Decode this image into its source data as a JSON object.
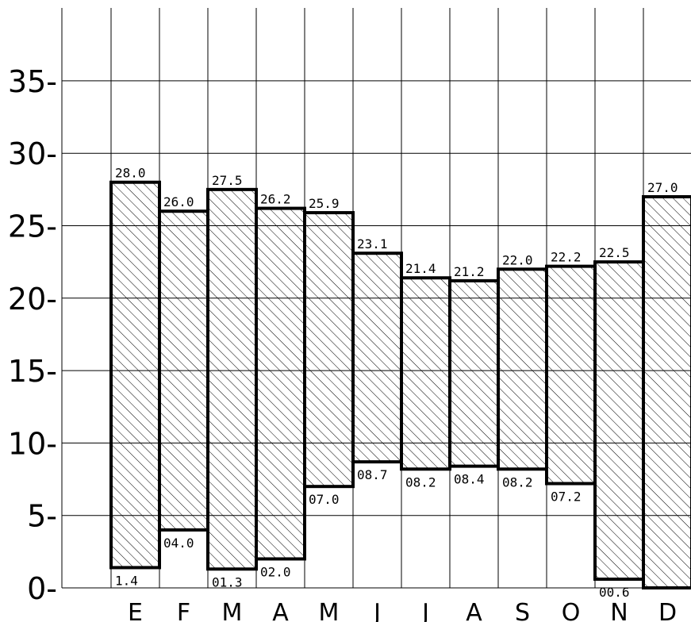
{
  "chart_data": {
    "type": "bar",
    "categories": [
      "E",
      "F",
      "M",
      "A",
      "M",
      "J",
      "J",
      "A",
      "S",
      "O",
      "N",
      "D"
    ],
    "series": [
      {
        "high": [
          28.0,
          26.0,
          27.5,
          26.2,
          25.9,
          23.1,
          21.4,
          21.2,
          22.0,
          22.2,
          22.5,
          27.0
        ],
        "low": [
          1.4,
          4.0,
          1.3,
          2.0,
          7.0,
          8.7,
          8.2,
          8.4,
          8.2,
          7.2,
          0.6,
          null
        ]
      }
    ],
    "high_labels": [
      "28.0",
      "26.0",
      "27.5",
      "26.2",
      "25.9",
      "23.1",
      "21.4",
      "21.2",
      "22.0",
      "22.2",
      "22.5",
      "27.0"
    ],
    "low_labels": [
      "1.4",
      "04.0",
      "01.3",
      "02.0",
      "07.0",
      "08.7",
      "08.2",
      "08.4",
      "08.2",
      "07.2",
      "00.6",
      ""
    ],
    "yticks": [
      0,
      5,
      10,
      15,
      20,
      25,
      30,
      35
    ],
    "ytick_labels": [
      "0-",
      "5-",
      "10-",
      "15-",
      "20-",
      "25-",
      "30-",
      "35-"
    ],
    "ylim": [
      0,
      40
    ],
    "grid": true,
    "bar_fill": "hatched",
    "colors": {
      "line": "#000000",
      "background": "#ffffff"
    }
  }
}
